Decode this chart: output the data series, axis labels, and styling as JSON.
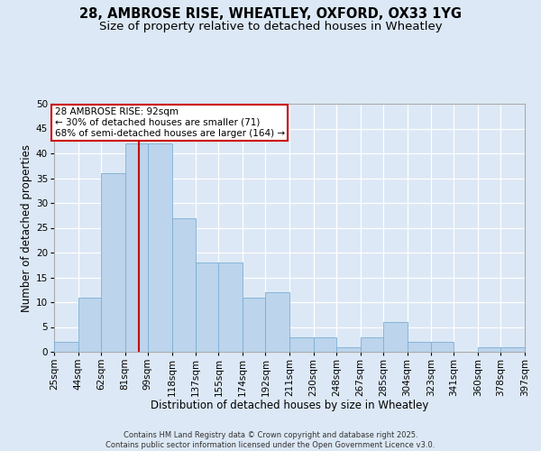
{
  "title1": "28, AMBROSE RISE, WHEATLEY, OXFORD, OX33 1YG",
  "title2": "Size of property relative to detached houses in Wheatley",
  "xlabel": "Distribution of detached houses by size in Wheatley",
  "ylabel": "Number of detached properties",
  "bin_edges": [
    25,
    44,
    62,
    81,
    99,
    118,
    137,
    155,
    174,
    192,
    211,
    230,
    248,
    267,
    285,
    304,
    323,
    341,
    360,
    378,
    397
  ],
  "bin_labels": [
    "25sqm",
    "44sqm",
    "62sqm",
    "81sqm",
    "99sqm",
    "118sqm",
    "137sqm",
    "155sqm",
    "174sqm",
    "192sqm",
    "211sqm",
    "230sqm",
    "248sqm",
    "267sqm",
    "285sqm",
    "304sqm",
    "323sqm",
    "341sqm",
    "360sqm",
    "378sqm",
    "397sqm"
  ],
  "bar_heights": [
    2,
    11,
    36,
    42,
    42,
    27,
    18,
    18,
    11,
    12,
    3,
    3,
    1,
    3,
    6,
    2,
    2,
    0,
    1,
    1
  ],
  "bar_color": "#bcd4ec",
  "bar_edge_color": "#7aafd4",
  "property_value": 92,
  "red_line_color": "#cc0000",
  "ylim": [
    0,
    50
  ],
  "yticks": [
    0,
    5,
    10,
    15,
    20,
    25,
    30,
    35,
    40,
    45,
    50
  ],
  "annotation_text": "28 AMBROSE RISE: 92sqm\n← 30% of detached houses are smaller (71)\n68% of semi-detached houses are larger (164) →",
  "annotation_box_color": "#ffffff",
  "annotation_border_color": "#cc0000",
  "bg_color": "#dce8f5",
  "footer_text": "Contains HM Land Registry data © Crown copyright and database right 2025.\nContains public sector information licensed under the Open Government Licence v3.0.",
  "title1_fontsize": 10.5,
  "title2_fontsize": 9.5,
  "axis_label_fontsize": 8.5,
  "tick_fontsize": 7.5,
  "annotation_fontsize": 7.5,
  "footer_fontsize": 6.0
}
